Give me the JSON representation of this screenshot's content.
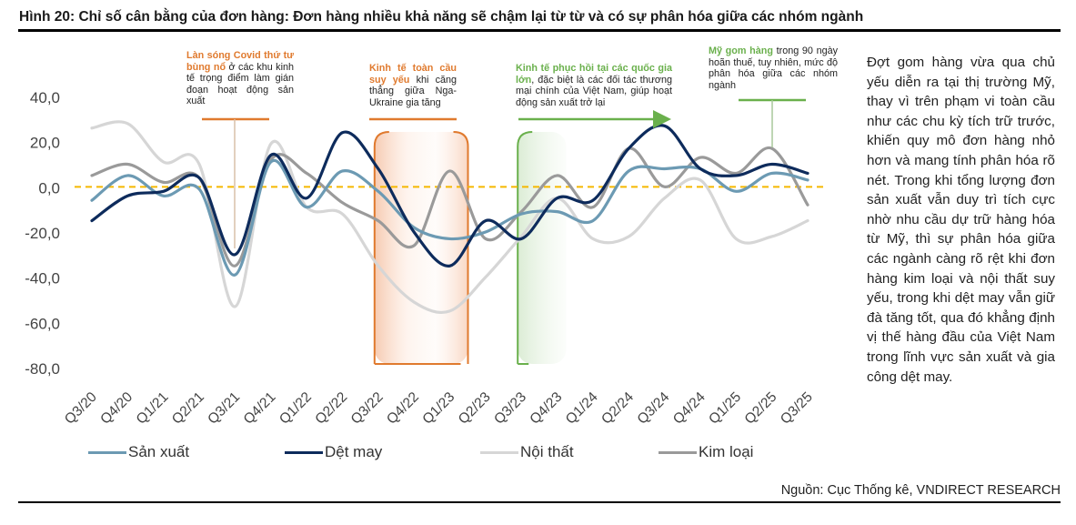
{
  "figure": {
    "title": "Hình 20: Chỉ số cân bằng của đơn hàng: Đơn hàng nhiều khả năng sẽ chậm lại từ từ và có sự phân hóa giữa các nhóm ngành",
    "source": "Nguồn: Cục Thống kê, VNDIRECT RESEARCH",
    "side_text": "Đợt gom hàng vừa qua chủ yếu diễn ra tại thị trường Mỹ, thay vì trên phạm vi toàn cầu như các chu kỳ tích trữ trước, khiến quy mô đơn hàng nhỏ hơn và mang tính phân hóa rõ nét. Trong khi tổng lượng đơn sản xuất vẫn duy trì tích cực nhờ nhu cầu dự trữ hàng hóa từ Mỹ, thì sự phân hóa giữa các ngành càng rõ rệt khi đơn hàng kim loại và nội thất suy yếu, trong khi dệt may vẫn giữ đà tăng tốt, qua đó khẳng định vị thế hàng đầu của Việt Nam trong lĩnh vực sản xuất và gia công dệt may."
  },
  "annotations": [
    {
      "highlight": "Làn sóng Covid thứ tư bùng nổ",
      "text": " ở các khu kinh tế trọng điểm làm gián đoạn hoạt động sản xuất",
      "color": "#e07a2e"
    },
    {
      "highlight": "Kinh tế toàn cầu suy yếu",
      "text": " khi căng thẳng giữa Nga-Ukraine gia tăng",
      "color": "#e07a2e"
    },
    {
      "highlight": "Kinh tế phục hồi tại các quốc gia lớn",
      "text": ", đặc biệt là các đối tác thương mại chính của Việt Nam, giúp hoạt động sản xuất trở lại",
      "color": "#6ab04c"
    },
    {
      "highlight": "Mỹ gom hàng",
      "text": " trong 90 ngày hoãn thuế, tuy nhiên, mức độ phân hóa giữa các nhóm ngành",
      "color": "#6ab04c"
    }
  ],
  "chart_data": {
    "type": "line",
    "title": "",
    "xlabel": "",
    "ylabel": "",
    "ylim": [
      -80,
      40
    ],
    "yticks": [
      "40,0",
      "20,0",
      "0,0",
      "-20,0",
      "-40,0",
      "-60,0",
      "-80,0"
    ],
    "ytick_values": [
      40,
      20,
      0,
      -20,
      -40,
      -60,
      -80
    ],
    "reference_line": {
      "value": 0,
      "color": "#f5b800",
      "style": "dashed"
    },
    "legend_position": "bottom",
    "grid": false,
    "categories": [
      "Q3/20",
      "Q4/20",
      "Q1/21",
      "Q2/21",
      "Q3/21",
      "Q4/21",
      "Q1/22",
      "Q2/22",
      "Q3/22",
      "Q4/22",
      "Q1/23",
      "Q2/23",
      "Q3/23",
      "Q4/23",
      "Q1/24",
      "Q2/24",
      "Q3/24",
      "Q4/24",
      "Q1/25",
      "Q2/25",
      "Q3/25"
    ],
    "series": [
      {
        "name": "Sản xuất",
        "color": "#6c9ab3",
        "values": [
          -6,
          5,
          -4,
          -1,
          -39,
          11,
          -9,
          7,
          -2,
          -18,
          -23,
          -20,
          -12,
          -11,
          -15,
          7,
          8,
          8,
          -2,
          6,
          3
        ]
      },
      {
        "name": "Dệt may",
        "color": "#0d2b5c",
        "values": [
          -15,
          -4,
          -2,
          4,
          -30,
          14,
          -5,
          24,
          8,
          -20,
          -35,
          -15,
          -23,
          -5,
          -6,
          17,
          27,
          8,
          5,
          10,
          6
        ]
      },
      {
        "name": "Nội thất",
        "color": "#d6d6d6",
        "values": [
          26,
          28,
          11,
          10,
          -53,
          19,
          -9,
          -12,
          -35,
          -51,
          -55,
          -40,
          -22,
          -5,
          -23,
          -22,
          -5,
          3,
          -23,
          -22,
          -15
        ]
      },
      {
        "name": "Kim loại",
        "color": "#9a9a9a",
        "values": [
          5,
          10,
          2,
          4,
          -35,
          12,
          6,
          -7,
          -15,
          -26,
          7,
          -23,
          -11,
          5,
          -9,
          17,
          0,
          13,
          6,
          17,
          -8
        ]
      }
    ],
    "highlight_periods": [
      {
        "from": "Q3/22",
        "to": "Q1/23",
        "color": "#e07a2e"
      },
      {
        "from": "Q3/23",
        "to": "Q4/23",
        "color": "#6ab04c"
      }
    ]
  }
}
